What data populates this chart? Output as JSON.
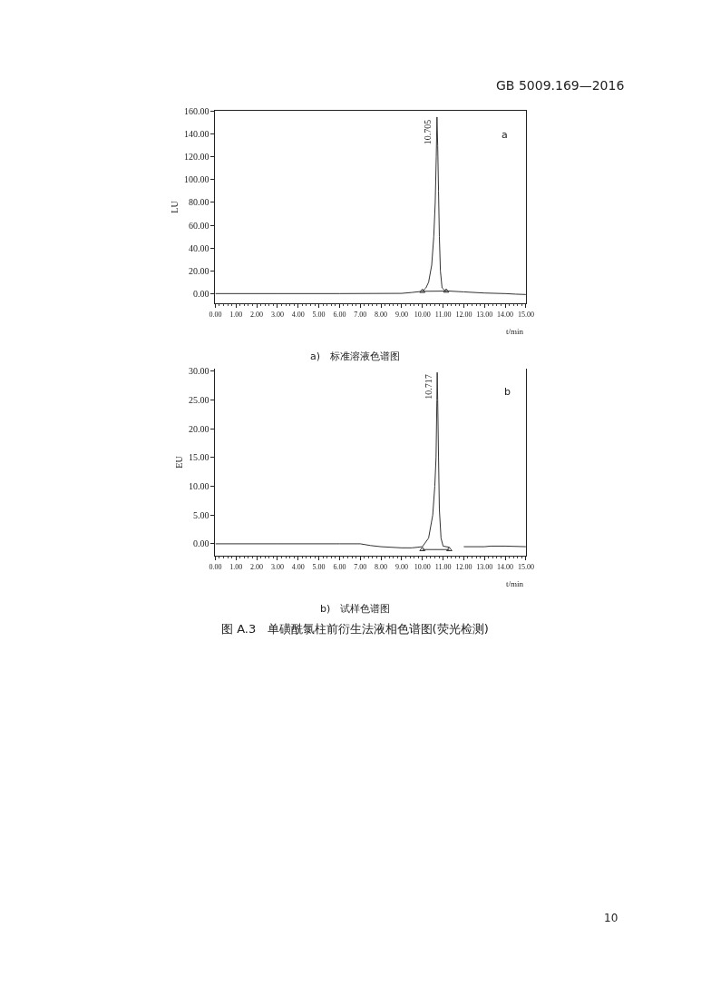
{
  "chart_data": [
    {
      "type": "line",
      "title": "a)   标准溶液色谱图",
      "xlabel": "t/min",
      "ylabel": "LU",
      "xlim": [
        0,
        15
      ],
      "xticks": [
        {
          "value": 0,
          "label": "0.00"
        },
        {
          "value": 1,
          "label": "1.00"
        },
        {
          "value": 2,
          "label": "2.00"
        },
        {
          "value": 3,
          "label": "3.00"
        },
        {
          "value": 4,
          "label": "4.00"
        },
        {
          "value": 5,
          "label": "5.00"
        },
        {
          "value": 6,
          "label": "6.00"
        },
        {
          "value": 7,
          "label": "7.00"
        },
        {
          "value": 8,
          "label": "8.00"
        },
        {
          "value": 9,
          "label": "9.00"
        },
        {
          "value": 10,
          "label": "10.00"
        },
        {
          "value": 11,
          "label": "11.00"
        },
        {
          "value": 12,
          "label": "12.00"
        },
        {
          "value": 13,
          "label": "13.00"
        },
        {
          "value": 14,
          "label": "14.00"
        },
        {
          "value": 15,
          "label": "15.00"
        }
      ],
      "ylim": [
        -8.5,
        160.5
      ],
      "yticks": [
        {
          "value": 0,
          "label": "0.00"
        },
        {
          "value": 20,
          "label": "20.00"
        },
        {
          "value": 40,
          "label": "40.00"
        },
        {
          "value": 60,
          "label": "60.00"
        },
        {
          "value": 80,
          "label": "80.00"
        },
        {
          "value": 100,
          "label": "100.00"
        },
        {
          "value": 120,
          "label": "120.00"
        },
        {
          "value": 140,
          "label": "140.00"
        },
        {
          "value": 160,
          "label": "160.00"
        }
      ],
      "marker": "none",
      "line_style": "solid",
      "series": [
        {
          "color": "#333333",
          "x": [
            0,
            3,
            6,
            9,
            9.5,
            10.0,
            10.17,
            10.3,
            10.45,
            10.55,
            10.62,
            10.67,
            10.705,
            10.74,
            10.78,
            10.82,
            10.87,
            10.95,
            11.1,
            11.5,
            12,
            13,
            14,
            14.5,
            15
          ],
          "values": [
            0,
            0,
            0,
            0.2,
            1,
            2,
            5,
            10,
            25,
            50,
            80,
            120,
            155,
            130,
            90,
            50,
            20,
            5,
            2.5,
            2,
            1.5,
            0.5,
            0,
            -0.5,
            -0.8
          ]
        },
        {
          "color": "#333333",
          "marker": "triangle",
          "x": [
            10.0,
            11.15
          ],
          "values": [
            2,
            2.2
          ]
        }
      ],
      "annotations": [
        {
          "text": "10.705",
          "x": 10.705,
          "y": 155
        },
        "a",
        "GB 5009.169—2016"
      ]
    },
    {
      "type": "line",
      "title": "b)   试样色谱图",
      "xlabel": "t/min",
      "ylabel": "EU",
      "xlim": [
        0,
        15
      ],
      "xticks": [
        {
          "value": 0,
          "label": "0.00"
        },
        {
          "value": 1,
          "label": "1.00"
        },
        {
          "value": 2,
          "label": "2.00"
        },
        {
          "value": 3,
          "label": "3.00"
        },
        {
          "value": 4,
          "label": "4.00"
        },
        {
          "value": 5,
          "label": "5.00"
        },
        {
          "value": 6,
          "label": "6.00"
        },
        {
          "value": 7,
          "label": "7.00"
        },
        {
          "value": 8,
          "label": "8.00"
        },
        {
          "value": 9,
          "label": "9.00"
        },
        {
          "value": 10,
          "label": "10.00"
        },
        {
          "value": 11,
          "label": "11.00"
        },
        {
          "value": 12,
          "label": "12.00"
        },
        {
          "value": 13,
          "label": "13.00"
        },
        {
          "value": 14,
          "label": "14.00"
        },
        {
          "value": 15,
          "label": "15.00"
        }
      ],
      "ylim": [
        -2.1,
        30.5
      ],
      "yticks": [
        {
          "value": 0,
          "label": "0.00"
        },
        {
          "value": 5,
          "label": "5.00"
        },
        {
          "value": 10,
          "label": "10.00"
        },
        {
          "value": 15,
          "label": "15.00"
        },
        {
          "value": 20,
          "label": "20.00"
        },
        {
          "value": 25,
          "label": "25.00"
        },
        {
          "value": 30,
          "label": "30.00"
        }
      ],
      "marker": "none",
      "line_style": "solid",
      "series": [
        {
          "color": "#333333",
          "x": [
            0,
            3,
            6,
            7,
            7.5,
            8,
            9,
            9.5,
            10.0,
            10.3,
            10.5,
            10.6,
            10.66,
            10.7,
            10.717,
            10.74,
            10.78,
            10.82,
            10.9,
            11.0,
            11.3,
            11.6,
            12,
            13,
            13.3,
            14,
            15
          ],
          "values": [
            0,
            0,
            0,
            0,
            -0.3,
            -0.5,
            -0.7,
            -0.7,
            -0.5,
            1,
            5,
            10,
            15,
            25,
            29.8,
            25,
            15,
            6,
            1,
            -0.4,
            -0.6,
            null,
            -0.5,
            -0.5,
            -0.4,
            -0.4,
            -0.5
          ]
        },
        {
          "color": "#333333",
          "marker": "triangle",
          "x": [
            10.0,
            11.3
          ],
          "values": [
            -1.0,
            -1.0
          ]
        }
      ],
      "annotations": [
        {
          "text": "10.717",
          "x": 10.717,
          "y": 29.8
        },
        "b",
        "图 A.3   单磺酰氯柱前衍生法液相色谱图(荧光检测)",
        "10"
      ]
    }
  ]
}
